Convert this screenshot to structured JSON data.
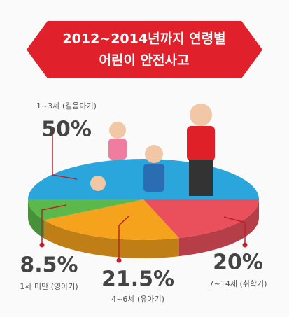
{
  "chart_data": {
    "type": "pie",
    "title": [
      "2012~2014년까지 연령별",
      "어린이 안전사고"
    ],
    "categories": [
      "1~3세 (걸음마기)",
      "7~14세 (취학기)",
      "4~6세 (유아기)",
      "1세 미만 (영아기)"
    ],
    "values": [
      50,
      20,
      21.5,
      8.5
    ],
    "value_labels": [
      "50%",
      "20%",
      "21.5%",
      "8.5%"
    ],
    "colors": [
      "#2ba6dc",
      "#e9505c",
      "#f5a21c",
      "#5cb84a"
    ]
  }
}
